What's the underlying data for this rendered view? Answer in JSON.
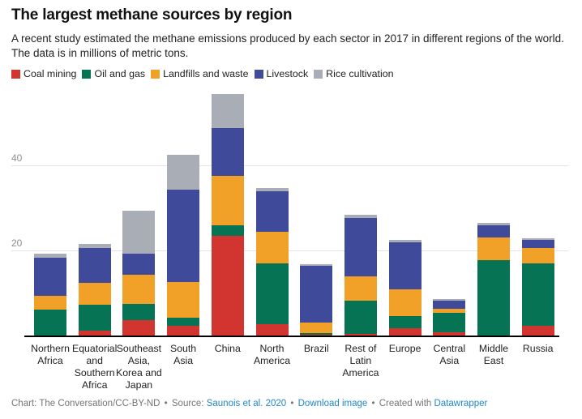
{
  "header": {
    "title": "The largest methane sources by region",
    "subtitle": "A recent study estimated the methane emissions produced by each sector in 2017 in different regions of the world. The data is in millions of metric tons."
  },
  "chart_data": {
    "type": "bar",
    "stacked": true,
    "unit": "millions of metric tons",
    "legend_position": "top",
    "grid": "horizontal",
    "yticks": [
      20,
      40
    ],
    "ylim": [
      0,
      58
    ],
    "categories": [
      "Northern Africa",
      "Equatorial and Southern Africa",
      "Southeast Asia, Korea and Japan",
      "South Asia",
      "China",
      "North America",
      "Brazil",
      "Rest of Latin America",
      "Europe",
      "Central Asia",
      "Middle East",
      "Russia"
    ],
    "category_label_lines": [
      [
        "Northern",
        "Africa"
      ],
      [
        "Equatorial",
        "and",
        "Southern",
        "Africa"
      ],
      [
        "Southeast",
        "Asia,",
        "Korea and",
        "Japan"
      ],
      [
        "South",
        "Asia"
      ],
      [
        "China"
      ],
      [
        "North",
        "America"
      ],
      [
        "Brazil"
      ],
      [
        "Rest of",
        "Latin",
        "America"
      ],
      [
        "Europe"
      ],
      [
        "Central",
        "Asia"
      ],
      [
        "Middle",
        "East"
      ],
      [
        "Russia"
      ]
    ],
    "series": [
      {
        "name": "Coal mining",
        "color": "#d2352f",
        "values": [
          0,
          1.2,
          3.7,
          2.2,
          23.5,
          2.6,
          0.1,
          0.4,
          1.7,
          0.7,
          0,
          2.2
        ]
      },
      {
        "name": "Oil and gas",
        "color": "#077355",
        "values": [
          6.1,
          6.0,
          3.8,
          1.9,
          2.5,
          14.3,
          0.5,
          7.7,
          2.9,
          4.6,
          17.7,
          14.8
        ]
      },
      {
        "name": "Landfills and waste",
        "color": "#f1a028",
        "values": [
          3.3,
          5.2,
          6.7,
          8.4,
          11.5,
          7.4,
          2.4,
          5.8,
          6.3,
          0.9,
          5.4,
          3.5
        ]
      },
      {
        "name": "Livestock",
        "color": "#3f4a9b",
        "values": [
          8.9,
          8.2,
          5.1,
          21.7,
          11.3,
          9.7,
          13.4,
          13.7,
          11.1,
          2.0,
          2.9,
          2.0
        ]
      },
      {
        "name": "Rice cultivation",
        "color": "#a9aeb6",
        "values": [
          1.0,
          1.0,
          10.1,
          8.2,
          8.0,
          0.6,
          0.3,
          0.7,
          0.5,
          0.4,
          0.4,
          0.4
        ]
      }
    ],
    "axis_colors": {
      "gridline": "#e3e3e3",
      "baseline": "#000000",
      "tick_label": "#8e8e8e"
    }
  },
  "footer": {
    "credit": "Chart: The Conversation/CC-BY-ND",
    "separator": "•",
    "source_label": "Source:",
    "source_link": "Saunois et al. 2020",
    "download_link": "Download image",
    "created_with": "Created with",
    "tool_link": "Datawrapper"
  }
}
